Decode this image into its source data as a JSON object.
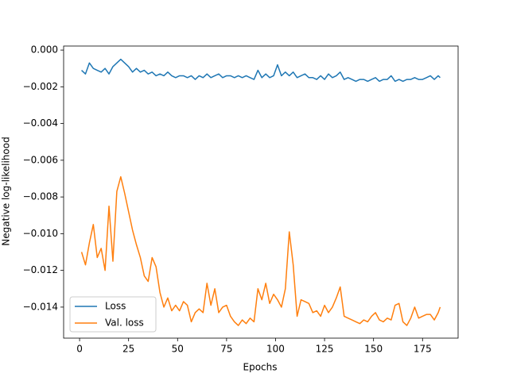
{
  "chart_data": {
    "type": "line",
    "xlabel": "Epochs",
    "ylabel": "Negative log-likelihood",
    "x": [
      1,
      3,
      5,
      7,
      9,
      11,
      13,
      15,
      17,
      19,
      21,
      23,
      25,
      27,
      29,
      31,
      33,
      35,
      37,
      39,
      41,
      43,
      45,
      47,
      49,
      51,
      53,
      55,
      57,
      59,
      61,
      63,
      65,
      67,
      69,
      71,
      73,
      75,
      77,
      79,
      81,
      83,
      85,
      87,
      89,
      91,
      93,
      95,
      97,
      99,
      101,
      103,
      105,
      107,
      109,
      111,
      113,
      115,
      117,
      119,
      121,
      123,
      125,
      127,
      129,
      131,
      133,
      135,
      137,
      139,
      141,
      143,
      145,
      147,
      149,
      151,
      153,
      155,
      157,
      159,
      161,
      163,
      165,
      167,
      169,
      171,
      173,
      175,
      177,
      179,
      181,
      183,
      184
    ],
    "series": [
      {
        "name": "Loss",
        "color": "#1f77b4",
        "values": [
          -0.0011,
          -0.0013,
          -0.0007,
          -0.001,
          -0.0011,
          -0.0012,
          -0.001,
          -0.0013,
          -0.0009,
          -0.0007,
          -0.0005,
          -0.0007,
          -0.0009,
          -0.0012,
          -0.001,
          -0.0012,
          -0.0011,
          -0.0013,
          -0.0012,
          -0.0014,
          -0.0013,
          -0.0014,
          -0.0012,
          -0.0014,
          -0.0015,
          -0.0014,
          -0.0014,
          -0.0015,
          -0.0014,
          -0.0016,
          -0.0014,
          -0.0015,
          -0.0013,
          -0.0015,
          -0.0014,
          -0.0013,
          -0.0015,
          -0.0014,
          -0.0014,
          -0.0015,
          -0.0014,
          -0.0015,
          -0.0014,
          -0.0015,
          -0.0016,
          -0.0011,
          -0.0015,
          -0.0013,
          -0.0015,
          -0.0014,
          -0.0008,
          -0.0014,
          -0.0012,
          -0.0014,
          -0.0012,
          -0.0015,
          -0.0014,
          -0.0013,
          -0.0015,
          -0.0015,
          -0.0016,
          -0.0014,
          -0.0016,
          -0.0013,
          -0.0015,
          -0.0014,
          -0.0012,
          -0.0016,
          -0.0015,
          -0.0016,
          -0.0017,
          -0.0016,
          -0.0016,
          -0.0017,
          -0.0016,
          -0.0015,
          -0.0017,
          -0.0016,
          -0.0016,
          -0.0014,
          -0.0017,
          -0.0016,
          -0.0017,
          -0.0016,
          -0.0016,
          -0.0015,
          -0.0016,
          -0.0016,
          -0.0015,
          -0.0014,
          -0.0016,
          -0.0014,
          -0.0015
        ]
      },
      {
        "name": "Val. loss",
        "color": "#ff7f0e",
        "values": [
          -0.011,
          -0.0117,
          -0.0105,
          -0.0095,
          -0.0113,
          -0.0108,
          -0.012,
          -0.0085,
          -0.0115,
          -0.0077,
          -0.0069,
          -0.0078,
          -0.0088,
          -0.0098,
          -0.0106,
          -0.0113,
          -0.0123,
          -0.0126,
          -0.0113,
          -0.0118,
          -0.0132,
          -0.014,
          -0.0135,
          -0.0142,
          -0.0139,
          -0.0142,
          -0.0137,
          -0.0139,
          -0.0148,
          -0.0143,
          -0.0141,
          -0.0143,
          -0.0127,
          -0.0139,
          -0.013,
          -0.0143,
          -0.014,
          -0.0139,
          -0.0145,
          -0.0148,
          -0.015,
          -0.0147,
          -0.0149,
          -0.0146,
          -0.0148,
          -0.013,
          -0.0136,
          -0.0127,
          -0.0138,
          -0.0133,
          -0.0136,
          -0.014,
          -0.013,
          -0.0099,
          -0.0117,
          -0.0145,
          -0.0136,
          -0.0137,
          -0.0138,
          -0.0143,
          -0.0142,
          -0.0145,
          -0.0139,
          -0.0143,
          -0.014,
          -0.0135,
          -0.0129,
          -0.0145,
          -0.0146,
          -0.0147,
          -0.0148,
          -0.0149,
          -0.0147,
          -0.0148,
          -0.0145,
          -0.0143,
          -0.0147,
          -0.0148,
          -0.0146,
          -0.0147,
          -0.0139,
          -0.0138,
          -0.0148,
          -0.015,
          -0.0146,
          -0.014,
          -0.0146,
          -0.0145,
          -0.0144,
          -0.0144,
          -0.0147,
          -0.0143,
          -0.014
        ]
      }
    ],
    "xlim": [
      -8.15,
      193.15
    ],
    "ylim": [
      -0.01569,
      0.00022
    ],
    "xticks": [
      0,
      25,
      50,
      75,
      100,
      125,
      150,
      175
    ],
    "yticks": [
      {
        "value": 0,
        "label": "0.000"
      },
      {
        "value": -0.002,
        "label": "−0.002"
      },
      {
        "value": -0.004,
        "label": "−0.004"
      },
      {
        "value": -0.006,
        "label": "−0.006"
      },
      {
        "value": -0.008,
        "label": "−0.008"
      },
      {
        "value": -0.01,
        "label": "−0.010"
      },
      {
        "value": -0.012,
        "label": "−0.012"
      },
      {
        "value": -0.014,
        "label": "−0.014"
      }
    ],
    "legend": "lower left"
  }
}
